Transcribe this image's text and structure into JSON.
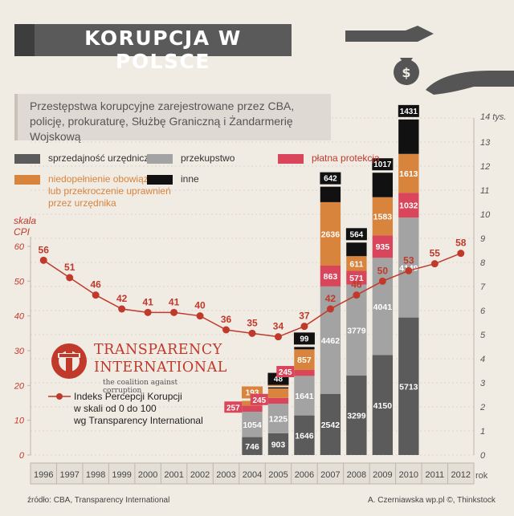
{
  "title": "KORUPCJA W POLSCE",
  "subtitle": "Przestępstwa korupcyjne zarejestrowane przez CBA, policję, prokuraturę, Służbę Graniczną i Żandarmerię Wojskową",
  "left_axis": {
    "name_line1": "skala",
    "name_line2": "CPI",
    "ticks": [
      "0",
      "10",
      "20",
      "30",
      "40",
      "50",
      "60"
    ]
  },
  "right_axis": {
    "unit": "14 tys.",
    "ticks": [
      "0",
      "1",
      "2",
      "3",
      "4",
      "5",
      "6",
      "7",
      "8",
      "9",
      "10",
      "11",
      "12",
      "13"
    ]
  },
  "x_axis_label": "rok",
  "legend": {
    "sprzedajnosc": "sprzedajność urzędnicza",
    "przekupstwo": "przekupstwo",
    "platna": "płatna protekcja",
    "niedopelnienie_1": "niedopełnienie obowiązków",
    "niedopelnienie_2": "lub przekroczenie uprawnień",
    "niedopelnienie_3": "przez urzędnika",
    "inne": "inne"
  },
  "ti": {
    "name1": "TRANSPARENCY",
    "name2": "INTERNATIONAL",
    "tagline": "the coalition against corruption",
    "cpi_line1": "Indeks Percepcji Korupcji",
    "cpi_line2": "w skali od 0 do 100",
    "cpi_line3": "wg Transparency International"
  },
  "footer": {
    "source": "źródło: CBA, Transparency International",
    "credit": "A. Czerniawska wp.pl ©, Thinkstock"
  },
  "colors": {
    "sprzedajnosc": "#5b5b5b",
    "przekupstwo": "#a3a3a3",
    "platna": "#d9455a",
    "niedopelnienie": "#d9843d",
    "inne": "#111111",
    "cpi": "#c0392b"
  },
  "chart_data": {
    "type": "bar",
    "stacked": true,
    "categories": [
      "1996",
      "1997",
      "1998",
      "1999",
      "2000",
      "2001",
      "2002",
      "2003",
      "2004",
      "2005",
      "2006",
      "2007",
      "2008",
      "2009",
      "2010",
      "2011",
      "2012"
    ],
    "series": [
      {
        "name": "sprzedajność urzędnicza",
        "values": [
          null,
          null,
          null,
          null,
          null,
          null,
          null,
          null,
          746,
          903,
          1646,
          2542,
          3299,
          4150,
          5713,
          null,
          null
        ]
      },
      {
        "name": "przekupstwo",
        "values": [
          null,
          null,
          null,
          null,
          null,
          null,
          null,
          null,
          1054,
          1225,
          1641,
          4462,
          3779,
          4041,
          4149,
          null,
          null
        ]
      },
      {
        "name": "płatna protekcja",
        "values": [
          null,
          null,
          null,
          null,
          null,
          null,
          null,
          null,
          257,
          245,
          245,
          863,
          571,
          935,
          1032,
          null,
          null
        ]
      },
      {
        "name": "niedopełnienie obowiązków lub przekroczenie uprawnień przez urzędnika",
        "values": [
          null,
          null,
          null,
          null,
          null,
          null,
          null,
          null,
          193,
          392,
          857,
          2636,
          611,
          1583,
          1613,
          null,
          null
        ]
      },
      {
        "name": "inne",
        "values": [
          null,
          null,
          null,
          null,
          null,
          null,
          null,
          null,
          null,
          48,
          99,
          642,
          564,
          1017,
          1431,
          null,
          null
        ]
      }
    ],
    "y_right": [
      0,
      14000
    ],
    "cpi": {
      "name": "Indeks Percepcji Korupcji",
      "values": [
        56,
        51,
        46,
        42,
        41,
        41,
        40,
        36,
        35,
        34,
        37,
        42,
        46,
        50,
        53,
        55,
        58
      ],
      "ylim": [
        0,
        60
      ]
    }
  }
}
